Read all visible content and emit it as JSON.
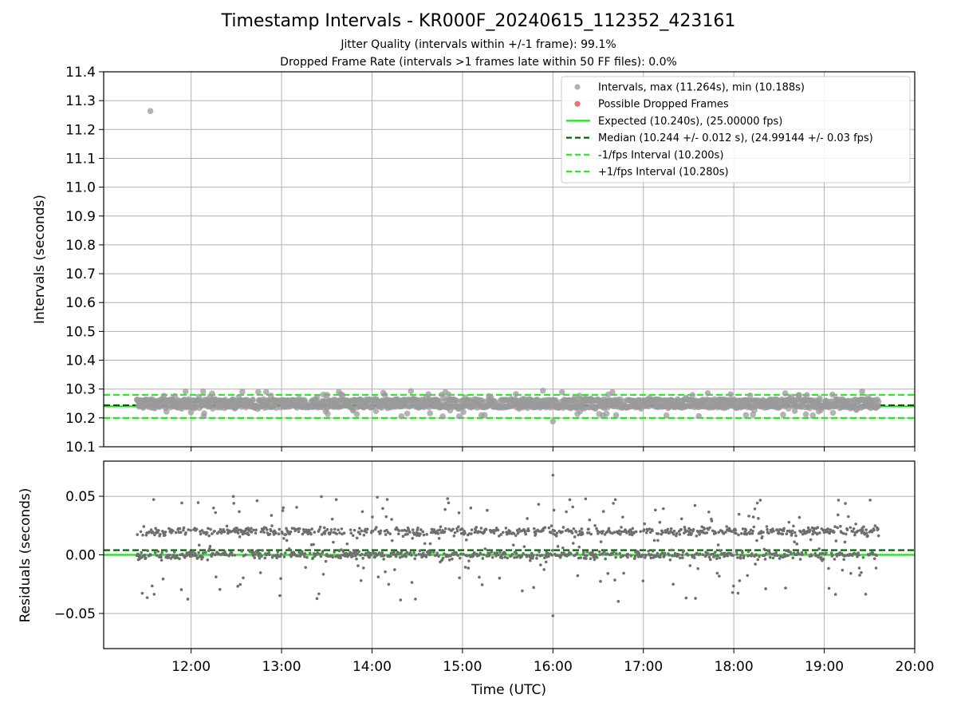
{
  "chart_data": [
    {
      "type": "scatter",
      "panel": "intervals",
      "title": "Timestamp Intervals - KR000F_20240615_112352_423161",
      "subtitle_lines": [
        "Jitter Quality (intervals within +/-1 frame): 99.1%",
        "Dropped Frame Rate (intervals >1 frames late within 50 FF files): 0.0%"
      ],
      "ylabel": "Intervals (seconds)",
      "ylim": [
        10.1,
        11.4
      ],
      "yticks": [
        "10.1",
        "10.2",
        "10.3",
        "10.4",
        "10.5",
        "10.6",
        "10.7",
        "10.8",
        "10.9",
        "11.0",
        "11.1",
        "11.2",
        "11.3",
        "11.4"
      ],
      "ytick_values": [
        10.1,
        10.2,
        10.3,
        10.4,
        10.5,
        10.6,
        10.7,
        10.8,
        10.9,
        11.0,
        11.1,
        11.2,
        11.3,
        11.4
      ],
      "xlim": [
        "11:02",
        "20:00"
      ],
      "grid": true,
      "legend_position": "top-right",
      "legend": [
        {
          "label": "Intervals, max (11.264s), min (10.188s)",
          "kind": "marker",
          "color": "#aaaaaa"
        },
        {
          "label": "Possible Dropped Frames",
          "kind": "marker",
          "color": "#f06060"
        },
        {
          "label": "Expected (10.240s), (25.00000 fps)",
          "kind": "solid",
          "color": "#22dd22"
        },
        {
          "label": "Median (10.244 +/- 0.012 s), (24.99144 +/- 0.03 fps)",
          "kind": "dashed",
          "color": "#006400"
        },
        {
          "label": "-1/fps Interval (10.200s)",
          "kind": "dashed",
          "color": "#22ee22"
        },
        {
          "label": "+1/fps Interval (10.280s)",
          "kind": "dashed",
          "color": "#22ee22"
        }
      ],
      "reference_lines": {
        "expected": 10.24,
        "median": 10.244,
        "minus_one_fps": 10.2,
        "plus_one_fps": 10.28
      },
      "series": [
        {
          "name": "Intervals",
          "max": 11.264,
          "min": 10.188,
          "start": "11:24",
          "end": "19:36",
          "outlier": {
            "x": "11:33",
            "y": 11.264
          }
        }
      ]
    },
    {
      "type": "scatter",
      "panel": "residuals",
      "ylabel": "Residuals (seconds)",
      "xlabel": "Time (UTC)",
      "ylim": [
        -0.08,
        0.08
      ],
      "yticks": [
        "−0.05",
        "0.00",
        "0.05"
      ],
      "ytick_values": [
        -0.05,
        0.0,
        0.05
      ],
      "xticks": [
        "12:00",
        "13:00",
        "14:00",
        "15:00",
        "16:00",
        "17:00",
        "18:00",
        "19:00",
        "20:00"
      ],
      "xlim": [
        "11:02",
        "20:00"
      ],
      "grid": true,
      "reference_lines": {
        "zero": 0.0,
        "median_offset": 0.004
      },
      "series": [
        {
          "name": "Residuals",
          "start": "11:24",
          "end": "19:36",
          "max": 0.068,
          "min": -0.052
        }
      ]
    }
  ]
}
